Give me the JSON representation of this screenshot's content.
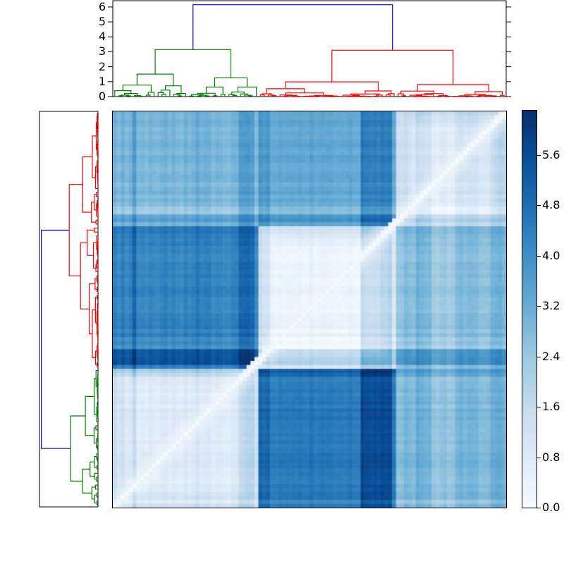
{
  "figure": {
    "background": "#ffffff",
    "frame_color": "#000000"
  },
  "top_dendrogram": {
    "axis_tick_labels": [
      "0",
      "1",
      "2",
      "3",
      "4",
      "5",
      "6"
    ],
    "axis_tick_values": [
      0,
      1,
      2,
      3,
      4,
      5,
      6
    ],
    "ylim_max": 6.42,
    "root_height": 6.15,
    "root_color": "#0000ff",
    "seed": 11,
    "clusters": [
      {
        "color": "#008000",
        "n_leaves": 37,
        "root_height": 3.15
      },
      {
        "color": "#ff0000",
        "n_leaves": 63,
        "root_height": 3.1,
        "first_split": 0.556
      }
    ]
  },
  "left_dendrogram": {
    "xlim_max": 6.3,
    "root_height": 6.1,
    "root_color": "#0000ff",
    "seed": 5,
    "clusters": [
      {
        "color": "#ff0000",
        "n_leaves": 65,
        "root_height": 3.1,
        "first_split": 0.446
      },
      {
        "color": "#008000",
        "n_leaves": 35,
        "root_height": 2.95
      }
    ]
  },
  "chart_data": {
    "type": "heatmap",
    "colormap": "Blues",
    "vmin": 0.0,
    "vmax": 6.3,
    "matrix_size": [
      100,
      100
    ],
    "row_bands": [
      {
        "cluster": "red-A",
        "count": 29
      },
      {
        "cluster": "red-B",
        "count": 36
      },
      {
        "cluster": "green",
        "count": 35
      }
    ],
    "col_bands": [
      {
        "cluster": "green",
        "count": 37
      },
      {
        "cluster": "red-B",
        "count": 35
      },
      {
        "cluster": "red-A",
        "count": 28
      }
    ],
    "block_means": [
      [
        2.95,
        3.35,
        1.1
      ],
      [
        4.3,
        0.4,
        2.75
      ],
      [
        0.75,
        4.55,
        2.9
      ]
    ],
    "antidiagonal_value": 0.03,
    "row_stripes": [
      {
        "band": 0,
        "from": 0.85,
        "to": 0.91,
        "off": -0.5
      },
      {
        "band": 0,
        "from": 0.91,
        "to": 1.0,
        "off": 0.55
      },
      {
        "band": 1,
        "from": 0.0,
        "to": 0.05,
        "off": 0.4
      },
      {
        "band": 1,
        "from": 0.8,
        "to": 0.87,
        "off": -0.3
      },
      {
        "band": 1,
        "from": 0.87,
        "to": 1.0,
        "off": 1.25
      },
      {
        "band": 2,
        "from": 0.0,
        "to": 0.05,
        "off": 0.6
      },
      {
        "band": 2,
        "from": 0.05,
        "to": 0.11,
        "off": -0.25
      },
      {
        "band": 2,
        "from": 0.97,
        "to": 1.0,
        "off": -0.3
      }
    ],
    "col_stripes": [
      {
        "band": 0,
        "from": 0.12,
        "to": 0.16,
        "off": 0.7
      },
      {
        "band": 0,
        "from": 0.55,
        "to": 0.6,
        "off": 0.25
      },
      {
        "band": 0,
        "from": 0.88,
        "to": 1.0,
        "off": 0.85
      },
      {
        "band": 1,
        "from": 0.0,
        "to": 0.06,
        "off": 0.3
      },
      {
        "band": 1,
        "from": 0.76,
        "to": 1.0,
        "off": 1.15
      },
      {
        "band": 2,
        "from": 0.0,
        "to": 0.07,
        "off": -0.35
      },
      {
        "band": 2,
        "from": 0.15,
        "to": 0.25,
        "off": 0.25
      },
      {
        "band": 2,
        "from": 0.33,
        "to": 0.52,
        "off": -0.35
      },
      {
        "band": 2,
        "from": 0.88,
        "to": 1.0,
        "off": 0.3
      }
    ],
    "noise": {
      "row_col_jitter": 0.36,
      "cell_jitter": 0.14,
      "edge_boost": 0.6,
      "edge_frac": 0.13,
      "seed": 42
    },
    "colorbar": {
      "tick_values": [
        0.0,
        0.8,
        1.6,
        2.4,
        3.2,
        4.0,
        4.8,
        5.6
      ],
      "tick_labels": [
        "0.0",
        "0.8",
        "1.6",
        "2.4",
        "3.2",
        "4.0",
        "4.8",
        "5.6"
      ]
    }
  }
}
